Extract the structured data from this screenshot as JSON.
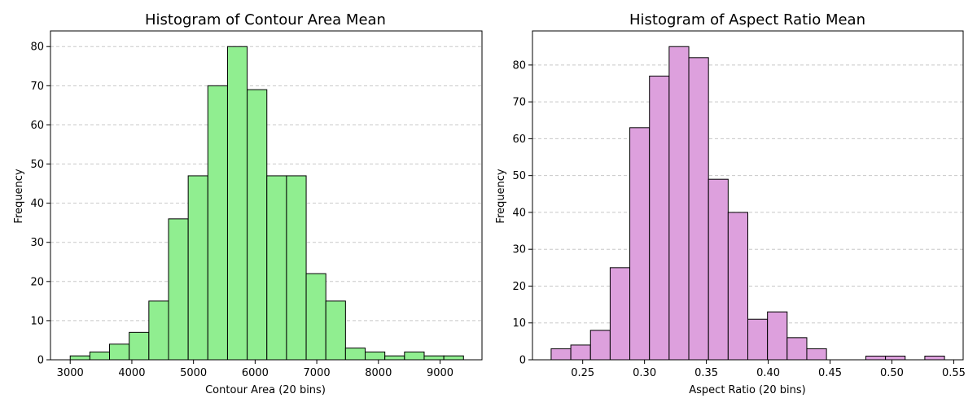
{
  "chart_data": [
    {
      "type": "bar",
      "title": "Histogram of Contour Area Mean",
      "xlabel": "Contour Area (20 bins)",
      "ylabel": "Frequency",
      "bar_color": "#90ee90",
      "edge_color": "#000000",
      "grid": "y-dashed",
      "xlim": [
        2680,
        9680
      ],
      "ylim": [
        0,
        84
      ],
      "xticks": [
        3000,
        4000,
        5000,
        6000,
        7000,
        8000,
        9000
      ],
      "yticks": [
        0,
        10,
        20,
        30,
        40,
        50,
        60,
        70,
        80
      ],
      "bin_edges": [
        3000,
        3319,
        3638,
        3957,
        4276,
        4595,
        4914,
        5233,
        5552,
        5871,
        6190,
        6509,
        6828,
        7147,
        7466,
        7785,
        8104,
        8423,
        8742,
        9061,
        9380
      ],
      "values": [
        1,
        2,
        4,
        7,
        15,
        36,
        47,
        70,
        80,
        69,
        47,
        47,
        22,
        15,
        3,
        2,
        1,
        2,
        1,
        1
      ]
    },
    {
      "type": "bar",
      "title": "Histogram of Aspect Ratio Mean",
      "xlabel": "Aspect Ratio (20 bins)",
      "ylabel": "Frequency",
      "bar_color": "#dda0dd",
      "edge_color": "#000000",
      "grid": "y-dashed",
      "xlim": [
        0.2094,
        0.5576
      ],
      "ylim": [
        0,
        89.25
      ],
      "xticks": [
        0.25,
        0.3,
        0.35,
        0.4,
        0.45,
        0.5,
        0.55
      ],
      "yticks": [
        0,
        10,
        20,
        30,
        40,
        50,
        60,
        70,
        80
      ],
      "bin_edges": [
        0.2245,
        0.2404,
        0.2563,
        0.2722,
        0.2881,
        0.304,
        0.3199,
        0.3358,
        0.3517,
        0.3676,
        0.3835,
        0.3994,
        0.4153,
        0.4312,
        0.4471,
        0.463,
        0.4789,
        0.4948,
        0.5107,
        0.5266,
        0.5425
      ],
      "values": [
        3,
        4,
        8,
        25,
        63,
        77,
        85,
        82,
        49,
        40,
        11,
        13,
        6,
        3,
        0,
        0,
        1,
        1,
        0,
        1
      ]
    }
  ]
}
